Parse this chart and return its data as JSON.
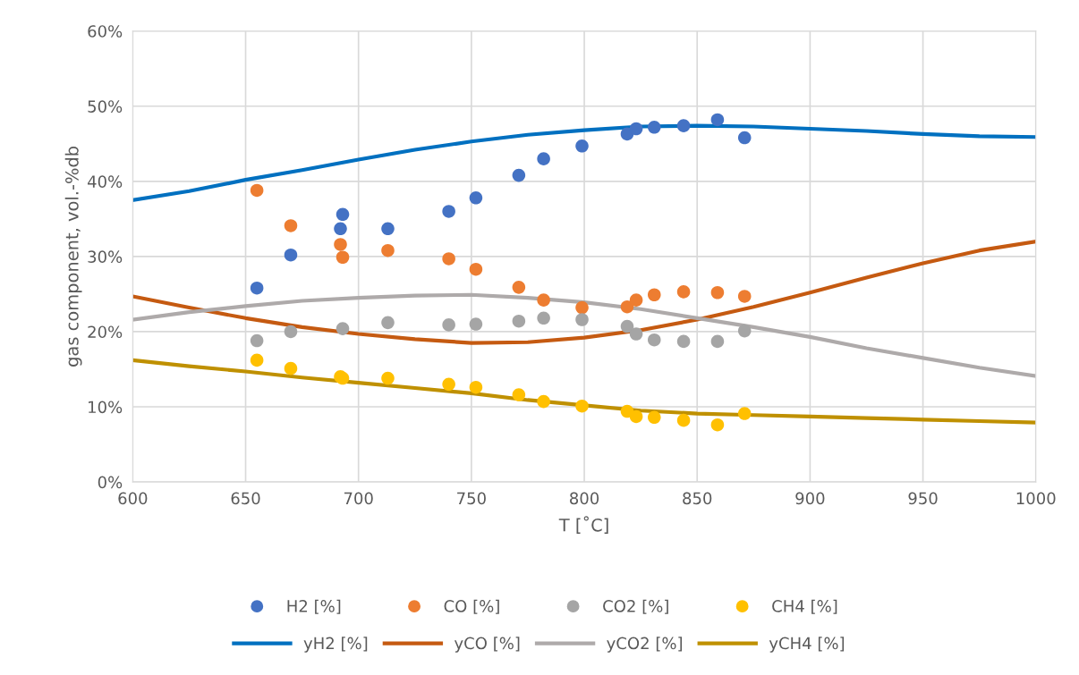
{
  "chart_data": {
    "type": "scatter",
    "xlabel": "T [˚C]",
    "ylabel": "gas component, vol.-%db",
    "xlim": [
      600,
      1000
    ],
    "xticks": [
      600,
      650,
      700,
      750,
      800,
      850,
      900,
      950,
      1000
    ],
    "ylim": [
      0,
      60
    ],
    "yticks": [
      {
        "value": 0,
        "label": "0%"
      },
      {
        "value": 10,
        "label": "10%"
      },
      {
        "value": 20,
        "label": "20%"
      },
      {
        "value": 30,
        "label": "30%"
      },
      {
        "value": 40,
        "label": "40%"
      },
      {
        "value": 50,
        "label": "50%"
      },
      {
        "value": 60,
        "label": "60%"
      }
    ],
    "grid": true,
    "legend": "bottom",
    "marker": "circle",
    "series": [
      {
        "name": "H2 [%]",
        "color": "#4472c4",
        "x": [
          655,
          670,
          693,
          692,
          713,
          740,
          752,
          771,
          782,
          799,
          819,
          823,
          831,
          844,
          859,
          871
        ],
        "values": [
          25.8,
          30.2,
          35.6,
          33.7,
          33.7,
          36.0,
          37.8,
          40.8,
          43.0,
          44.7,
          46.3,
          47.0,
          47.2,
          47.4,
          48.2,
          45.8
        ]
      },
      {
        "name": "CO [%]",
        "color": "#ed7d31",
        "x": [
          655,
          670,
          692,
          693,
          713,
          740,
          752,
          771,
          782,
          799,
          819,
          823,
          831,
          844,
          859,
          871
        ],
        "values": [
          38.8,
          34.1,
          31.6,
          29.9,
          30.8,
          29.7,
          28.3,
          25.9,
          24.2,
          23.2,
          23.3,
          24.2,
          24.9,
          25.3,
          25.2,
          24.7
        ]
      },
      {
        "name": "CO2 [%]",
        "color": "#a5a5a5",
        "x": [
          655,
          670,
          693,
          713,
          740,
          752,
          771,
          782,
          799,
          819,
          823,
          831,
          844,
          859,
          871
        ],
        "values": [
          18.8,
          20.0,
          20.4,
          21.2,
          20.9,
          21.0,
          21.4,
          21.8,
          21.6,
          20.7,
          19.7,
          18.9,
          18.7,
          18.7,
          20.1
        ]
      },
      {
        "name": "CH4 [%]",
        "color": "#ffc000",
        "x": [
          655,
          670,
          692,
          693,
          713,
          740,
          752,
          771,
          782,
          799,
          819,
          823,
          831,
          844,
          859,
          871
        ],
        "values": [
          16.2,
          15.1,
          14.0,
          13.8,
          13.8,
          13.0,
          12.6,
          11.6,
          10.7,
          10.1,
          9.4,
          8.7,
          8.6,
          8.2,
          7.6,
          9.1
        ]
      },
      {
        "name": "yH2 [%]",
        "type": "line",
        "marker": "none",
        "color": "#0070c0",
        "x": [
          600,
          625,
          650,
          675,
          700,
          725,
          750,
          775,
          800,
          825,
          850,
          875,
          900,
          925,
          950,
          975,
          1000
        ],
        "values": [
          37.5,
          38.7,
          40.2,
          41.5,
          42.9,
          44.2,
          45.3,
          46.2,
          46.8,
          47.3,
          47.4,
          47.3,
          47.0,
          46.7,
          46.3,
          46.0,
          45.9
        ]
      },
      {
        "name": "yCO [%]",
        "type": "line",
        "marker": "none",
        "color": "#c55a11",
        "x": [
          600,
          625,
          650,
          675,
          700,
          725,
          750,
          775,
          800,
          825,
          850,
          875,
          900,
          925,
          950,
          975,
          1000
        ],
        "values": [
          24.7,
          23.2,
          21.8,
          20.6,
          19.7,
          19.0,
          18.5,
          18.6,
          19.2,
          20.2,
          21.6,
          23.3,
          25.2,
          27.2,
          29.1,
          30.8,
          32.0
        ]
      },
      {
        "name": "yCO2 [%]",
        "type": "line",
        "marker": "none",
        "color": "#aeaaaa",
        "x": [
          600,
          625,
          650,
          675,
          700,
          725,
          750,
          775,
          800,
          825,
          850,
          875,
          900,
          925,
          950,
          975,
          1000
        ],
        "values": [
          21.6,
          22.6,
          23.4,
          24.1,
          24.5,
          24.8,
          24.9,
          24.5,
          23.9,
          23.0,
          21.8,
          20.6,
          19.3,
          17.8,
          16.5,
          15.2,
          14.1
        ]
      },
      {
        "name": "yCH4 [%]",
        "type": "line",
        "marker": "none",
        "color": "#bf9000",
        "x": [
          600,
          625,
          650,
          675,
          700,
          725,
          750,
          775,
          800,
          825,
          850,
          875,
          900,
          925,
          950,
          975,
          1000
        ],
        "values": [
          16.2,
          15.4,
          14.7,
          13.9,
          13.2,
          12.5,
          11.8,
          10.9,
          10.2,
          9.5,
          9.1,
          8.9,
          8.7,
          8.5,
          8.3,
          8.1,
          7.9
        ]
      }
    ]
  }
}
